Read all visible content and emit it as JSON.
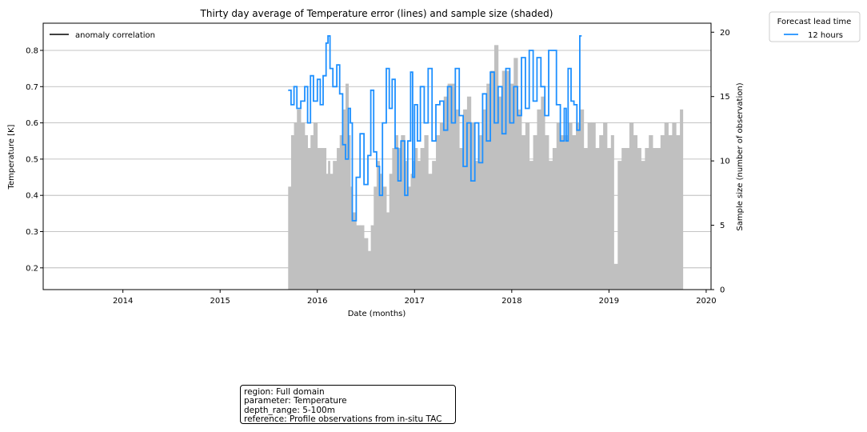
{
  "chart_data": {
    "type": "line",
    "title": "Thirty day average of Temperature error (lines) and sample size (shaded)",
    "xlabel": "Date (months)",
    "ylabel": "Temperature [K]",
    "y2label": "Sample size (number of observation)",
    "xlim": [
      2013.18,
      2020.05
    ],
    "ylim": [
      0.14,
      0.875
    ],
    "y2lim": [
      0,
      20.7
    ],
    "x_ticks": [
      "2014",
      "2015",
      "2016",
      "2017",
      "2018",
      "2019",
      "2020"
    ],
    "y_ticks": [
      "0.2",
      "0.3",
      "0.4",
      "0.5",
      "0.6",
      "0.7",
      "0.8"
    ],
    "y2_ticks": [
      "0",
      "5",
      "10",
      "15",
      "20"
    ],
    "grid": "horizontal",
    "legend_left": {
      "label": "anomaly correlation",
      "placement": "upper-left",
      "color": "#000000"
    },
    "legend_right": {
      "title": "Forecast lead time",
      "placement": "outside-top-right"
    },
    "series": [
      {
        "name": "12 hours",
        "color": "#1e90ff",
        "x": [
          2015.7,
          2015.73,
          2015.76,
          2015.79,
          2015.83,
          2015.87,
          2015.9,
          2015.93,
          2015.96,
          2016.0,
          2016.03,
          2016.06,
          2016.09,
          2016.11,
          2016.13,
          2016.16,
          2016.2,
          2016.23,
          2016.26,
          2016.29,
          2016.32,
          2016.34,
          2016.36,
          2016.4,
          2016.44,
          2016.48,
          2016.52,
          2016.55,
          2016.58,
          2016.61,
          2016.64,
          2016.67,
          2016.71,
          2016.74,
          2016.77,
          2016.8,
          2016.83,
          2016.86,
          2016.9,
          2016.93,
          2016.96,
          2016.98,
          2017.0,
          2017.03,
          2017.06,
          2017.1,
          2017.14,
          2017.18,
          2017.22,
          2017.26,
          2017.3,
          2017.34,
          2017.38,
          2017.42,
          2017.46,
          2017.5,
          2017.54,
          2017.58,
          2017.62,
          2017.66,
          2017.7,
          2017.74,
          2017.78,
          2017.82,
          2017.86,
          2017.9,
          2017.94,
          2017.98,
          2018.02,
          2018.06,
          2018.1,
          2018.14,
          2018.18,
          2018.22,
          2018.26,
          2018.3,
          2018.34,
          2018.38,
          2018.42,
          2018.46,
          2018.5,
          2018.54,
          2018.56,
          2018.58,
          2018.61,
          2018.64,
          2018.67,
          2018.7,
          2018.72
        ],
        "values": [
          0.69,
          0.65,
          0.7,
          0.64,
          0.66,
          0.7,
          0.6,
          0.73,
          0.66,
          0.72,
          0.65,
          0.73,
          0.82,
          0.84,
          0.75,
          0.7,
          0.76,
          0.68,
          0.54,
          0.5,
          0.64,
          0.6,
          0.33,
          0.45,
          0.57,
          0.43,
          0.51,
          0.69,
          0.52,
          0.48,
          0.4,
          0.6,
          0.75,
          0.64,
          0.72,
          0.53,
          0.44,
          0.55,
          0.4,
          0.55,
          0.74,
          0.45,
          0.65,
          0.55,
          0.7,
          0.6,
          0.75,
          0.55,
          0.65,
          0.66,
          0.58,
          0.7,
          0.6,
          0.75,
          0.62,
          0.48,
          0.6,
          0.44,
          0.6,
          0.49,
          0.68,
          0.55,
          0.74,
          0.6,
          0.7,
          0.57,
          0.75,
          0.6,
          0.7,
          0.62,
          0.78,
          0.64,
          0.8,
          0.66,
          0.78,
          0.7,
          0.62,
          0.8,
          0.8,
          0.65,
          0.55,
          0.64,
          0.55,
          0.75,
          0.66,
          0.65,
          0.58,
          0.84,
          0.84
        ]
      }
    ],
    "sample_size": {
      "name": "sample size",
      "color": "#c0c0c0",
      "x": [
        2015.7,
        2015.73,
        2015.76,
        2015.79,
        2015.83,
        2015.87,
        2015.9,
        2015.93,
        2015.96,
        2016.0,
        2016.03,
        2016.06,
        2016.09,
        2016.11,
        2016.13,
        2016.16,
        2016.2,
        2016.23,
        2016.26,
        2016.29,
        2016.32,
        2016.34,
        2016.36,
        2016.4,
        2016.44,
        2016.48,
        2016.52,
        2016.55,
        2016.58,
        2016.61,
        2016.64,
        2016.67,
        2016.71,
        2016.74,
        2016.77,
        2016.8,
        2016.83,
        2016.86,
        2016.9,
        2016.93,
        2016.96,
        2016.98,
        2017.0,
        2017.03,
        2017.06,
        2017.1,
        2017.14,
        2017.18,
        2017.22,
        2017.26,
        2017.3,
        2017.34,
        2017.38,
        2017.42,
        2017.46,
        2017.5,
        2017.54,
        2017.58,
        2017.62,
        2017.66,
        2017.7,
        2017.74,
        2017.78,
        2017.82,
        2017.86,
        2017.9,
        2017.94,
        2017.98,
        2018.02,
        2018.06,
        2018.1,
        2018.14,
        2018.18,
        2018.22,
        2018.26,
        2018.3,
        2018.34,
        2018.38,
        2018.42,
        2018.46,
        2018.5,
        2018.54,
        2018.58,
        2018.62,
        2018.66,
        2018.7,
        2018.74,
        2018.78,
        2018.82,
        2018.86,
        2018.9,
        2018.94,
        2018.98,
        2019.02,
        2019.05,
        2019.09,
        2019.13,
        2019.17,
        2019.21,
        2019.25,
        2019.29,
        2019.33,
        2019.37,
        2019.41,
        2019.45,
        2019.49,
        2019.53,
        2019.57,
        2019.61,
        2019.65,
        2019.69,
        2019.73
      ],
      "values": [
        8,
        12,
        13,
        14,
        13,
        12,
        11,
        12,
        13,
        11,
        11,
        11,
        9,
        10,
        9,
        10,
        11,
        12,
        14,
        16,
        12,
        8,
        6,
        5,
        5,
        4,
        3,
        5,
        8,
        10,
        9,
        8,
        6,
        9,
        11,
        12,
        11,
        12,
        10,
        8,
        9,
        10,
        11,
        10,
        11,
        12,
        9,
        10,
        12,
        13,
        15,
        16,
        16,
        14,
        11,
        14,
        15,
        13,
        10,
        12,
        14,
        16,
        17,
        19,
        15,
        17,
        17,
        16,
        18,
        14,
        12,
        13,
        10,
        12,
        14,
        15,
        12,
        10,
        11,
        13,
        12,
        12,
        13,
        12,
        13,
        14,
        11,
        13,
        13,
        11,
        12,
        13,
        11,
        12,
        2,
        10,
        11,
        11,
        13,
        12,
        11,
        10,
        11,
        12,
        11,
        11,
        12,
        13,
        12,
        13,
        12,
        14
      ]
    }
  },
  "info_box": [
    "region: Full domain",
    "parameter: Temperature",
    "depth_range: 5-100m",
    "reference: Profile observations from in-situ TAC"
  ]
}
